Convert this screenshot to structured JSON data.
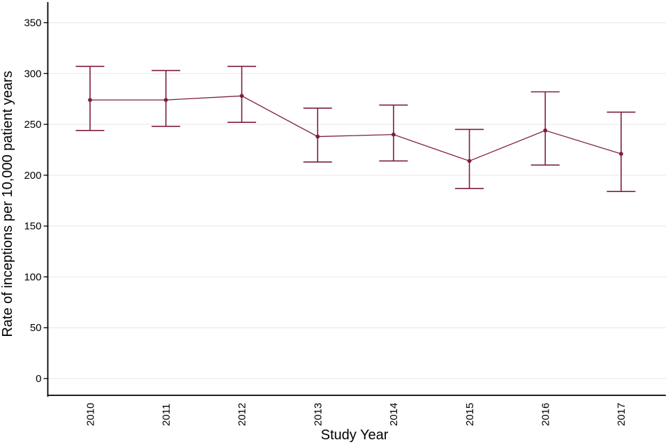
{
  "chart_data": {
    "type": "line",
    "title": "",
    "xlabel": "Study Year",
    "ylabel": "Rate of inceptions per 10,000 patient years",
    "categories": [
      "2010",
      "2011",
      "2012",
      "2013",
      "2014",
      "2015",
      "2016",
      "2017"
    ],
    "series": [
      {
        "name": "Rate of inceptions",
        "values": [
          274,
          274,
          278,
          238,
          240,
          214,
          244,
          221
        ],
        "ci_lower": [
          244,
          248,
          252,
          213,
          214,
          187,
          210,
          184
        ],
        "ci_upper": [
          307,
          303,
          307,
          266,
          269,
          245,
          282,
          262
        ]
      }
    ],
    "ylim": [
      0,
      370
    ],
    "yticks": [
      0,
      50,
      100,
      150,
      200,
      250,
      300,
      350
    ],
    "grid": "horizontal gridlines at each y tick",
    "legend_position": "none",
    "marker": "filled-circle-with-error-bars",
    "colors": {
      "series": "#7E1E3C",
      "grid": "#EFEDE9",
      "axis": "#000000",
      "text": "#000000",
      "background": "#ffffff"
    }
  }
}
